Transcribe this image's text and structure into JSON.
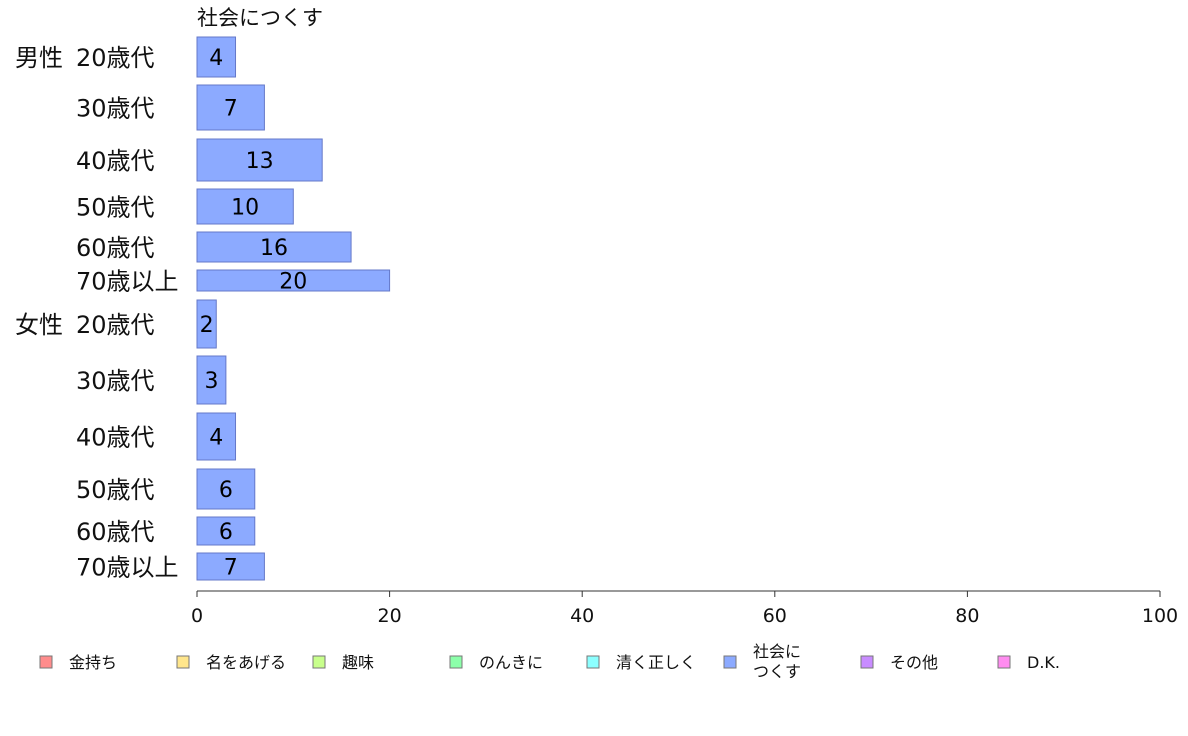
{
  "chart_data": {
    "type": "bar",
    "orientation": "horizontal",
    "title": "社会につくす",
    "groups": [
      "男性",
      "女性"
    ],
    "categories": [
      {
        "group": "男性",
        "label": "20歳代"
      },
      {
        "group": "男性",
        "label": "30歳代"
      },
      {
        "group": "男性",
        "label": "40歳代"
      },
      {
        "group": "男性",
        "label": "50歳代"
      },
      {
        "group": "男性",
        "label": "60歳代"
      },
      {
        "group": "男性",
        "label": "70歳以上"
      },
      {
        "group": "女性",
        "label": "20歳代"
      },
      {
        "group": "女性",
        "label": "30歳代"
      },
      {
        "group": "女性",
        "label": "40歳代"
      },
      {
        "group": "女性",
        "label": "50歳代"
      },
      {
        "group": "女性",
        "label": "60歳代"
      },
      {
        "group": "女性",
        "label": "70歳以上"
      }
    ],
    "series": [
      {
        "name": "社会につくす",
        "values": [
          4,
          7,
          13,
          10,
          16,
          20,
          2,
          3,
          4,
          6,
          6,
          7
        ],
        "value_labels": [
          "4",
          "7",
          "13",
          "10",
          "16",
          "20",
          "2",
          "3",
          "4",
          "6",
          "6",
          "7"
        ]
      }
    ],
    "xlim": [
      0,
      100
    ],
    "xticks": [
      0,
      20,
      40,
      60,
      80,
      100
    ],
    "grid": false,
    "legend_position": "bottom",
    "legend": [
      {
        "label": "金持ち",
        "color": "#ff8c8c"
      },
      {
        "label": "名をあげる",
        "color": "#ffe68c"
      },
      {
        "label": "趣味",
        "color": "#c8ff8c"
      },
      {
        "label": "のんきに",
        "color": "#8cffaa"
      },
      {
        "label": "清く正しく",
        "color": "#8cffff"
      },
      {
        "label": "社会に\nつくす",
        "color": "#8caaff"
      },
      {
        "label": "その他",
        "color": "#c88cff"
      },
      {
        "label": "D.K.",
        "color": "#ff8cf0"
      }
    ],
    "bar_color": "#8caaff",
    "bar_stroke": "#6478c8"
  }
}
